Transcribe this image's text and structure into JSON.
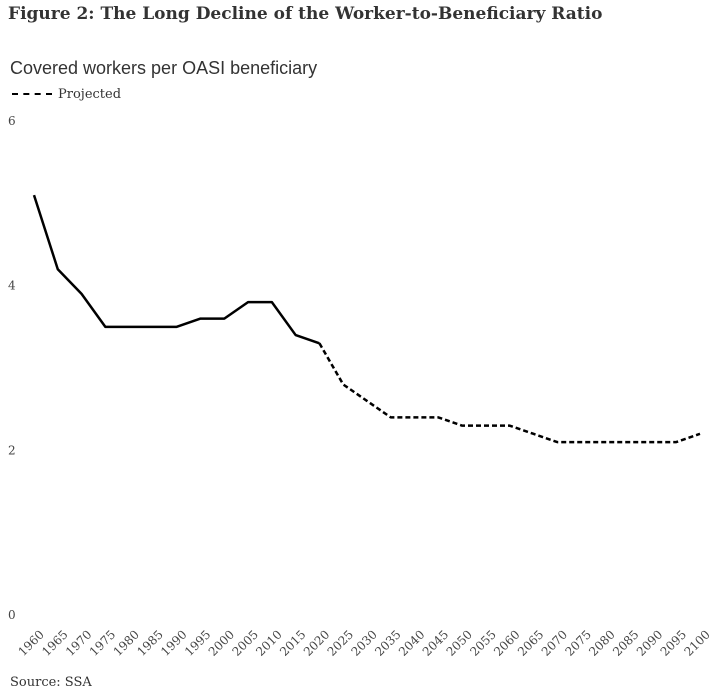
{
  "chart_data": {
    "type": "line",
    "title": "Figure 2: The Long Decline of the Worker-to-Beneficiary Ratio",
    "subtitle": "Covered workers per OASI beneficiary",
    "legend": {
      "label": "Projected",
      "placement": "top-left"
    },
    "source": "Source: SSA",
    "x": [
      1960,
      1965,
      1970,
      1975,
      1980,
      1985,
      1990,
      1995,
      2000,
      2005,
      2010,
      2015,
      2020,
      2025,
      2030,
      2035,
      2040,
      2045,
      2050,
      2055,
      2060,
      2065,
      2070,
      2075,
      2080,
      2085,
      2090,
      2095,
      2100
    ],
    "x_tick_labels": [
      "1960",
      "1965",
      "1970",
      "1975",
      "1980",
      "1985",
      "1990",
      "1995",
      "2000",
      "2005",
      "2010",
      "2015",
      "2020",
      "2025",
      "2030",
      "2035",
      "2040",
      "2045",
      "2050",
      "2055",
      "2060",
      "2065",
      "2070",
      "2075",
      "2080",
      "2085",
      "2090",
      "2095",
      "2100"
    ],
    "series": [
      {
        "values": [
          5.1,
          4.2,
          3.9,
          3.5,
          3.5,
          3.5,
          3.5,
          3.6,
          3.6,
          3.8,
          3.8,
          3.4,
          3.3,
          2.8,
          2.6,
          2.4,
          2.4,
          2.4,
          2.3,
          2.3,
          2.3,
          2.2,
          2.1,
          2.1,
          2.1,
          2.1,
          2.1,
          2.1,
          2.2
        ]
      }
    ],
    "historical_end_year": 2020,
    "ylim": [
      0,
      6
    ],
    "y_ticks": [
      0,
      2,
      4,
      6
    ],
    "grid": false
  }
}
